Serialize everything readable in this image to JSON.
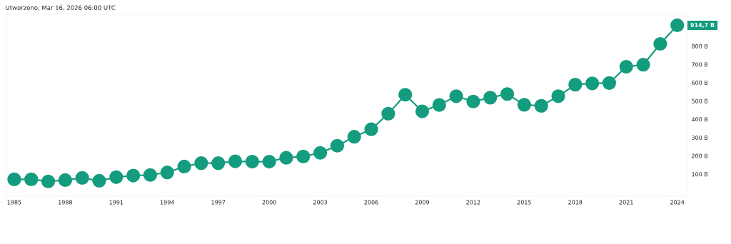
{
  "chart_data": {
    "type": "line",
    "title": "Utworzono, Mar 16, 2026 06:00 UTC",
    "x": [
      1985,
      1986,
      1987,
      1988,
      1989,
      1990,
      1991,
      1992,
      1993,
      1994,
      1995,
      1996,
      1997,
      1998,
      1999,
      2000,
      2001,
      2002,
      2003,
      2004,
      2005,
      2006,
      2007,
      2008,
      2009,
      2010,
      2011,
      2012,
      2013,
      2014,
      2015,
      2016,
      2017,
      2018,
      2019,
      2020,
      2021,
      2022,
      2023,
      2024
    ],
    "series": [
      {
        "color": "#149c7e",
        "values": [
          72,
          72,
          61,
          68,
          80,
          64,
          84,
          93,
          96,
          110,
          142,
          161,
          161,
          171,
          169,
          169,
          190,
          197,
          217,
          256,
          305,
          346,
          431,
          535,
          444,
          479,
          527,
          498,
          519,
          539,
          480,
          474,
          527,
          590,
          597,
          599,
          688,
          699,
          813,
          914.7
        ]
      }
    ],
    "xlim": [
      1984.5,
      2024.6
    ],
    "xticks": [
      1985,
      1988,
      1991,
      1994,
      1997,
      2000,
      2003,
      2006,
      2009,
      2012,
      2015,
      2018,
      2021,
      2024
    ],
    "ylim": [
      -20,
      975
    ],
    "yticks": [
      {
        "value": 100,
        "label": "100 B"
      },
      {
        "value": 200,
        "label": "200 B"
      },
      {
        "value": 300,
        "label": "300 B"
      },
      {
        "value": 400,
        "label": "400 B"
      },
      {
        "value": 500,
        "label": "500 B"
      },
      {
        "value": 600,
        "label": "600 B"
      },
      {
        "value": 700,
        "label": "700 B"
      },
      {
        "value": 800,
        "label": "800 B"
      }
    ],
    "annotations": [
      {
        "text": "914,7 B",
        "x": 2024,
        "y": 914.7
      }
    ],
    "marker": "circle",
    "line_style": "solid",
    "grid": false
  }
}
